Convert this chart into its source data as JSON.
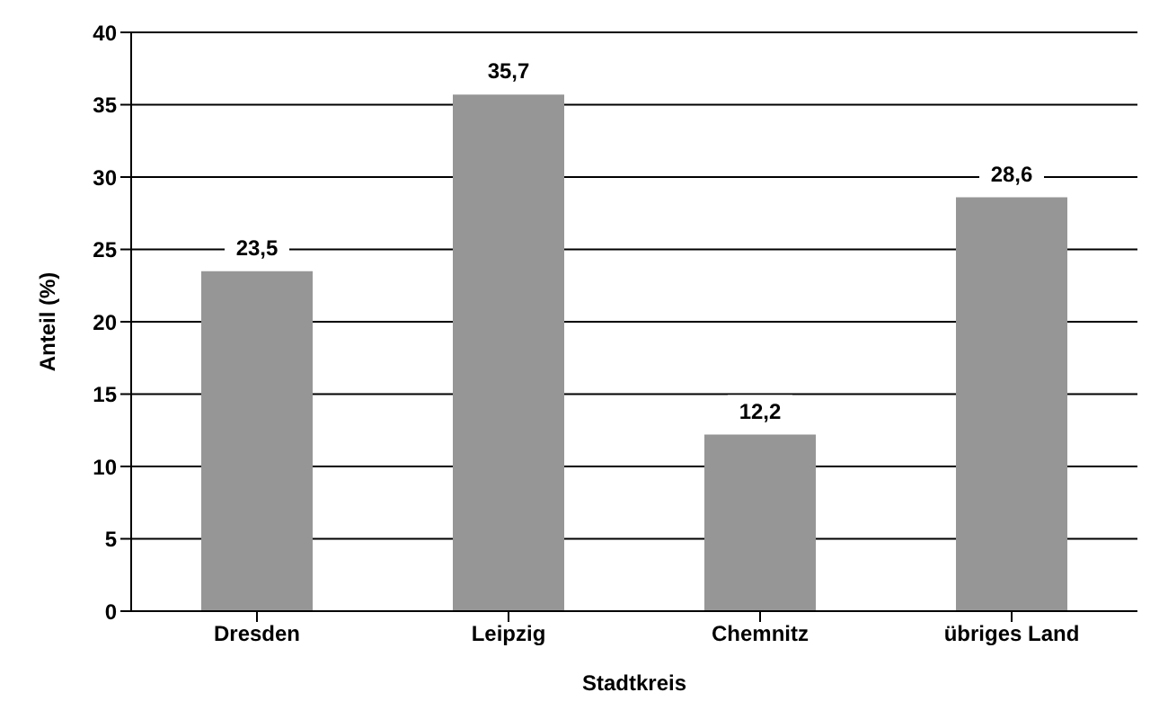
{
  "chart_data": {
    "type": "bar",
    "xlabel": "Stadtkreis",
    "ylabel": "Anteil (%)",
    "categories": [
      "Dresden",
      "Leipzig",
      "Chemnitz",
      "übriges Land"
    ],
    "values": [
      23.5,
      35.7,
      12.2,
      28.6
    ],
    "value_labels": [
      "23,5",
      "35,7",
      "12,2",
      "28,6"
    ],
    "color": "#969696",
    "ylim": [
      0,
      40
    ],
    "yticks": [
      0,
      5,
      10,
      15,
      20,
      25,
      30,
      35,
      40
    ],
    "grid": "y"
  }
}
